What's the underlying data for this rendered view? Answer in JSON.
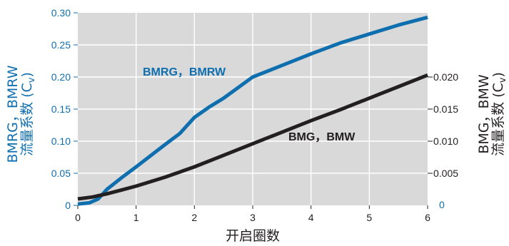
{
  "colors": {
    "plot_bg": "#d9d9da",
    "gridline": "#ffffff",
    "blue": "#0f6fae",
    "black": "#231f20"
  },
  "chart_data": {
    "type": "line",
    "xlabel": "开启圈数",
    "xlim": [
      0,
      6
    ],
    "x_ticks": [
      "0",
      "1",
      "2",
      "3",
      "4",
      "5",
      "6"
    ],
    "ylabel_left": {
      "line1": "BMRG，BMRW",
      "line2_text": "流量系数 (C",
      "line2_sub": "v",
      "line2_end": ")"
    },
    "ylim_left": [
      0,
      0.3
    ],
    "y_ticks_left": [
      "0",
      "0.05",
      "0.10",
      "0.15",
      "0.20",
      "0.25",
      "0.30"
    ],
    "ylabel_right": {
      "line1": "BMG，BMW",
      "line2_text": "流量系数 (C",
      "line2_sub": "v",
      "line2_end": ")"
    },
    "ylim_right": [
      0,
      0.03
    ],
    "y_ticks_right": [
      {
        "value": 0,
        "label": "0"
      },
      {
        "value": 0.005,
        "label": "0.005"
      },
      {
        "value": 0.01,
        "label": "0.010"
      },
      {
        "value": 0.015,
        "label": "0.015"
      },
      {
        "value": 0.02,
        "label": "0.020"
      }
    ],
    "grid": true,
    "series": [
      {
        "name": "BMRG，BMRW",
        "axis": "left",
        "color": "#0f6fae",
        "x": [
          0,
          0.2,
          0.35,
          0.5,
          0.75,
          1.0,
          1.5,
          1.75,
          2.0,
          2.25,
          2.5,
          3.0,
          3.5,
          4.0,
          4.5,
          5.0,
          5.5,
          6.0
        ],
        "y": [
          0.002,
          0.004,
          0.01,
          0.025,
          0.043,
          0.06,
          0.095,
          0.112,
          0.137,
          0.153,
          0.167,
          0.2,
          0.218,
          0.236,
          0.253,
          0.267,
          0.281,
          0.293
        ]
      },
      {
        "name": "BMG，BMW",
        "axis": "right",
        "color": "#231f20",
        "x": [
          0,
          0.25,
          0.5,
          0.75,
          1.0,
          1.5,
          2.0,
          2.5,
          3.0,
          3.5,
          4.0,
          4.5,
          5.0,
          5.5,
          6.0
        ],
        "y": [
          0.001,
          0.0013,
          0.0018,
          0.0024,
          0.003,
          0.0044,
          0.006,
          0.0078,
          0.0096,
          0.0114,
          0.0132,
          0.0149,
          0.0167,
          0.0185,
          0.0203
        ]
      }
    ]
  }
}
